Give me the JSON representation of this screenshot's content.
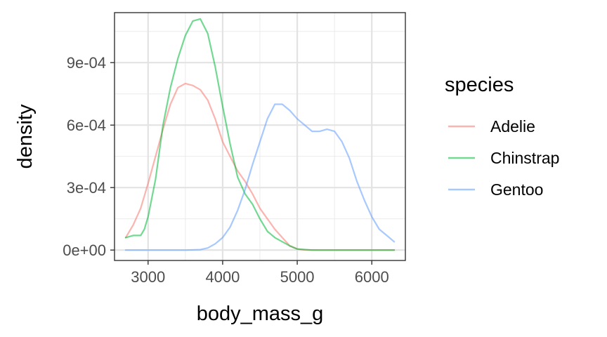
{
  "chart_data": {
    "type": "line",
    "xlabel": "body_mass_g",
    "ylabel": "density",
    "xlim": [
      2550,
      6450
    ],
    "ylim": [
      -5e-05,
      0.00114
    ],
    "x_ticks": [
      3000,
      4000,
      5000,
      6000
    ],
    "x_tick_labels": [
      "3000",
      "4000",
      "5000",
      "6000"
    ],
    "x_minor_ticks": [
      2500,
      3500,
      4500,
      5500,
      6500
    ],
    "y_ticks": [
      0,
      0.0003,
      0.0006,
      0.0009
    ],
    "y_tick_labels": [
      "0e+00",
      "3e-04",
      "6e-04",
      "9e-04"
    ],
    "y_minor_ticks": [
      0.00015,
      0.00045,
      0.00075,
      0.00105
    ],
    "grid": true,
    "legend_title": "species",
    "legend_position": "right",
    "series": [
      {
        "name": "Adelie",
        "color": "#F8766D",
        "points": [
          [
            2700,
            6e-05
          ],
          [
            2800,
            0.00012
          ],
          [
            2900,
            0.0002
          ],
          [
            3000,
            0.00032
          ],
          [
            3100,
            0.00045
          ],
          [
            3200,
            0.00058
          ],
          [
            3300,
            0.0007
          ],
          [
            3400,
            0.00078
          ],
          [
            3500,
            0.0008
          ],
          [
            3600,
            0.00079
          ],
          [
            3700,
            0.00077
          ],
          [
            3800,
            0.00072
          ],
          [
            3900,
            0.00063
          ],
          [
            4000,
            0.00052
          ],
          [
            4100,
            0.00045
          ],
          [
            4200,
            0.00038
          ],
          [
            4300,
            0.00033
          ],
          [
            4400,
            0.00027
          ],
          [
            4500,
            0.0002
          ],
          [
            4600,
            0.00015
          ],
          [
            4700,
            0.0001
          ],
          [
            4800,
            6e-05
          ],
          [
            4900,
            2e-05
          ],
          [
            5000,
            5e-06
          ],
          [
            5100,
            1e-06
          ],
          [
            5300,
            0
          ],
          [
            6300,
            0
          ]
        ]
      },
      {
        "name": "Chinstrap",
        "color": "#00BA38",
        "points": [
          [
            2700,
            6e-05
          ],
          [
            2800,
            7e-05
          ],
          [
            2900,
            7e-05
          ],
          [
            2950,
            0.0001
          ],
          [
            3000,
            0.00016
          ],
          [
            3100,
            0.00034
          ],
          [
            3200,
            0.0006
          ],
          [
            3300,
            0.00078
          ],
          [
            3400,
            0.00092
          ],
          [
            3500,
            0.00103
          ],
          [
            3600,
            0.0011
          ],
          [
            3700,
            0.00111
          ],
          [
            3800,
            0.00104
          ],
          [
            3900,
            0.00088
          ],
          [
            4000,
            0.00069
          ],
          [
            4100,
            0.00051
          ],
          [
            4200,
            0.00035
          ],
          [
            4300,
            0.00027
          ],
          [
            4400,
            0.00022
          ],
          [
            4500,
            0.00015
          ],
          [
            4600,
            9e-05
          ],
          [
            4700,
            6e-05
          ],
          [
            4800,
            4e-05
          ],
          [
            4900,
            2e-05
          ],
          [
            5000,
            5e-06
          ],
          [
            5200,
            0
          ],
          [
            6300,
            0
          ]
        ]
      },
      {
        "name": "Gentoo",
        "color": "#619CFF",
        "points": [
          [
            2700,
            0
          ],
          [
            3500,
            0
          ],
          [
            3700,
            2e-06
          ],
          [
            3800,
            1e-05
          ],
          [
            3900,
            3e-05
          ],
          [
            4000,
            6e-05
          ],
          [
            4100,
            0.00011
          ],
          [
            4200,
            0.00019
          ],
          [
            4300,
            0.00029
          ],
          [
            4400,
            0.00041
          ],
          [
            4500,
            0.00052
          ],
          [
            4600,
            0.00063
          ],
          [
            4700,
            0.0007
          ],
          [
            4800,
            0.0007
          ],
          [
            4900,
            0.00067
          ],
          [
            5000,
            0.00063
          ],
          [
            5100,
            0.0006
          ],
          [
            5200,
            0.00057
          ],
          [
            5300,
            0.00057
          ],
          [
            5400,
            0.00058
          ],
          [
            5500,
            0.00057
          ],
          [
            5600,
            0.00052
          ],
          [
            5700,
            0.00044
          ],
          [
            5800,
            0.00033
          ],
          [
            5900,
            0.00024
          ],
          [
            6000,
            0.00016
          ],
          [
            6100,
            0.0001
          ],
          [
            6200,
            7e-05
          ],
          [
            6300,
            4e-05
          ]
        ]
      }
    ]
  }
}
